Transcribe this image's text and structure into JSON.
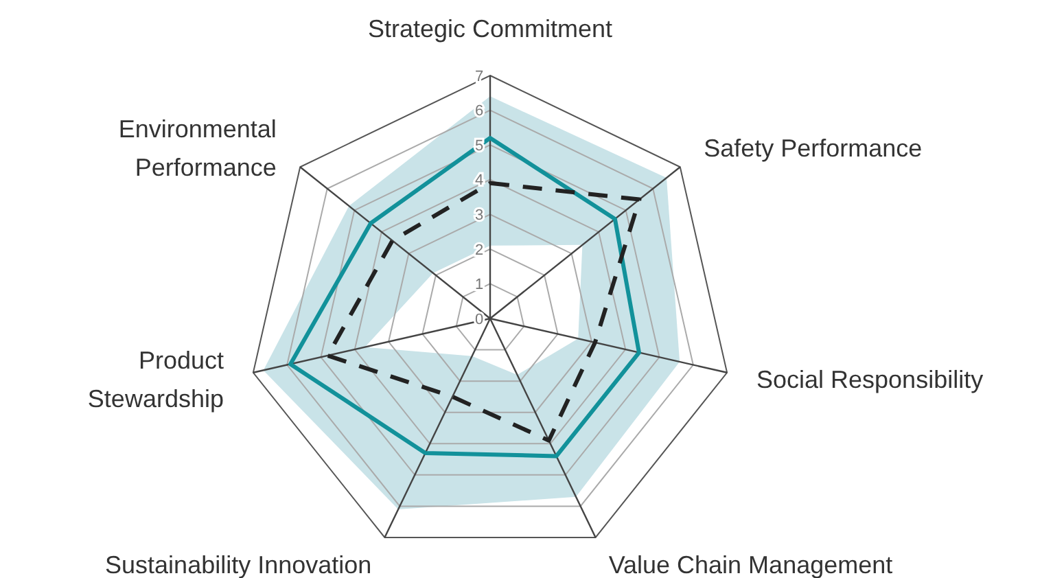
{
  "chart_data": {
    "type": "radar",
    "categories": [
      "Strategic Commitment",
      "Safety Performance",
      "Social Responsibility",
      "Value Chain Management",
      "Sustainability Innovation",
      "Product Stewardship",
      "Environmental Performance"
    ],
    "series": [
      {
        "type": "area",
        "color": "#c9e3e8",
        "values": [
          6.4,
          6.5,
          5.6,
          5.7,
          6.1,
          6.7,
          5.2
        ]
      },
      {
        "type": "area",
        "color": "#ffffff",
        "values": [
          2.1,
          3.4,
          2.6,
          1.8,
          1.2,
          3.7,
          2.1
        ]
      },
      {
        "color": "#12919a",
        "line_style": "solid",
        "values": [
          5.2,
          4.6,
          4.4,
          4.4,
          4.3,
          5.9,
          4.4
        ]
      },
      {
        "color": "#222222",
        "line_style": "dashed",
        "values": [
          3.9,
          5.5,
          3.1,
          3.9,
          2.5,
          4.8,
          3.6
        ]
      }
    ],
    "ylim": [
      0,
      7
    ],
    "yticks": [
      0,
      1,
      2,
      3,
      4,
      5,
      6,
      7
    ],
    "grid": true
  }
}
